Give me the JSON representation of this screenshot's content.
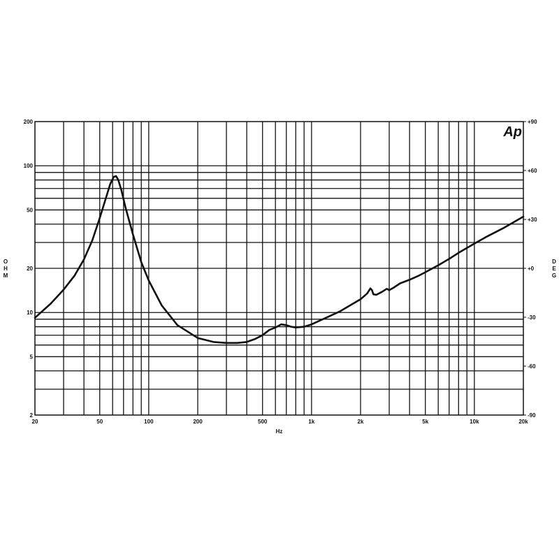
{
  "logo": "Ap",
  "chart_data": {
    "type": "line",
    "title": "",
    "xlabel": "Hz",
    "ylabel_left": "OHM",
    "ylabel_right": "DEG",
    "x_scale": "log",
    "y_scale": "log",
    "xlim": [
      20,
      20000
    ],
    "ylim": [
      2,
      200
    ],
    "y2lim": [
      -90,
      90
    ],
    "grid": true,
    "x_ticks": [
      {
        "value": 20,
        "label": "20"
      },
      {
        "value": 50,
        "label": "50"
      },
      {
        "value": 100,
        "label": "100"
      },
      {
        "value": 200,
        "label": "200"
      },
      {
        "value": 500,
        "label": "500"
      },
      {
        "value": 1000,
        "label": "1k"
      },
      {
        "value": 2000,
        "label": "2k"
      },
      {
        "value": 5000,
        "label": "5k"
      },
      {
        "value": 10000,
        "label": "10k"
      },
      {
        "value": 20000,
        "label": "20k"
      }
    ],
    "y_ticks": [
      {
        "value": 200,
        "label": "200"
      },
      {
        "value": 100,
        "label": "100"
      },
      {
        "value": 50,
        "label": "50"
      },
      {
        "value": 20,
        "label": "20"
      },
      {
        "value": 10,
        "label": "10"
      },
      {
        "value": 5,
        "label": "5"
      },
      {
        "value": 2,
        "label": "2"
      }
    ],
    "y2_ticks": [
      {
        "value": 90,
        "label": "+90"
      },
      {
        "value": 60,
        "label": "+60"
      },
      {
        "value": 30,
        "label": "+30"
      },
      {
        "value": 0,
        "label": "+0"
      },
      {
        "value": -30,
        "label": "-30"
      },
      {
        "value": -60,
        "label": "-60"
      },
      {
        "value": -90,
        "label": "-90"
      }
    ],
    "series": [
      {
        "color": "#111111",
        "x": [
          20,
          25,
          30,
          35,
          40,
          45,
          50,
          55,
          58,
          61,
          63,
          65,
          68,
          72,
          80,
          90,
          100,
          120,
          150,
          200,
          250,
          300,
          350,
          400,
          450,
          500,
          550,
          600,
          650,
          700,
          750,
          800,
          900,
          1000,
          1200,
          1500,
          1800,
          2000,
          2200,
          2300,
          2350,
          2400,
          2500,
          2700,
          2900,
          3000,
          3200,
          3500,
          4000,
          4500,
          5000,
          6000,
          7000,
          8000,
          10000,
          12000,
          15000,
          20000
        ],
        "y": [
          9.2,
          11.5,
          14.3,
          17.8,
          23,
          31,
          44,
          62,
          75,
          84,
          85,
          80,
          68,
          52,
          34,
          22,
          16.5,
          11.2,
          8.2,
          6.7,
          6.3,
          6.2,
          6.2,
          6.3,
          6.6,
          7.0,
          7.6,
          7.9,
          8.3,
          8.2,
          8.0,
          7.9,
          8.0,
          8.3,
          9.1,
          10.2,
          11.5,
          12.3,
          13.5,
          14.6,
          14.2,
          13.3,
          13.2,
          13.8,
          14.5,
          14.2,
          14.8,
          15.8,
          16.7,
          17.7,
          18.8,
          21,
          23.2,
          25.5,
          29.5,
          33,
          37.5,
          45
        ]
      }
    ]
  }
}
